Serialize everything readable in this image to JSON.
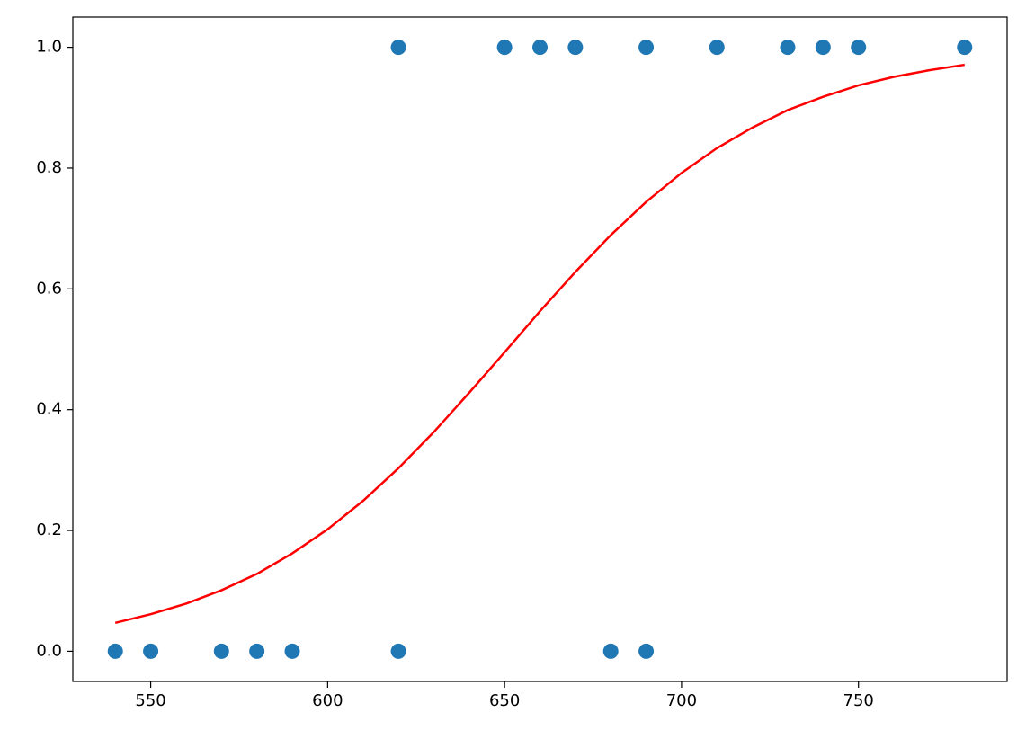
{
  "chart_data": {
    "type": "scatter",
    "xlim": [
      528,
      792
    ],
    "xticks": [
      550,
      600,
      650,
      700,
      750
    ],
    "ylim": [
      -0.05,
      1.05
    ],
    "yticks": [
      {
        "value": 0,
        "label": "0.0"
      },
      {
        "value": 0.2,
        "label": "0.2"
      },
      {
        "value": 0.4,
        "label": "0.4"
      },
      {
        "value": 0.6,
        "label": "0.6"
      },
      {
        "value": 0.8,
        "label": "0.8"
      },
      {
        "value": 1,
        "label": "1.0"
      }
    ],
    "grid": false,
    "series": [
      {
        "type": "scatter",
        "color": "#1f77b4",
        "x": [
          540,
          550,
          570,
          580,
          590,
          620,
          680,
          690,
          620,
          650,
          660,
          670,
          690,
          710,
          730,
          740,
          750,
          780
        ],
        "values": [
          0,
          0,
          0,
          0,
          0,
          0,
          0,
          0,
          1,
          1,
          1,
          1,
          1,
          1,
          1,
          1,
          1,
          1
        ]
      },
      {
        "type": "line",
        "color": "#ff0000",
        "x": [
          540,
          550,
          560,
          570,
          580,
          590,
          600,
          610,
          620,
          630,
          640,
          650,
          660,
          670,
          680,
          690,
          700,
          710,
          720,
          730,
          740,
          750,
          760,
          770,
          780
        ],
        "values": [
          0.047,
          0.0613,
          0.0788,
          0.101,
          0.128,
          0.162,
          0.202,
          0.249,
          0.303,
          0.363,
          0.428,
          0.495,
          0.563,
          0.628,
          0.689,
          0.744,
          0.792,
          0.833,
          0.867,
          0.896,
          0.918,
          0.937,
          0.951,
          0.962,
          0.971
        ]
      }
    ]
  }
}
